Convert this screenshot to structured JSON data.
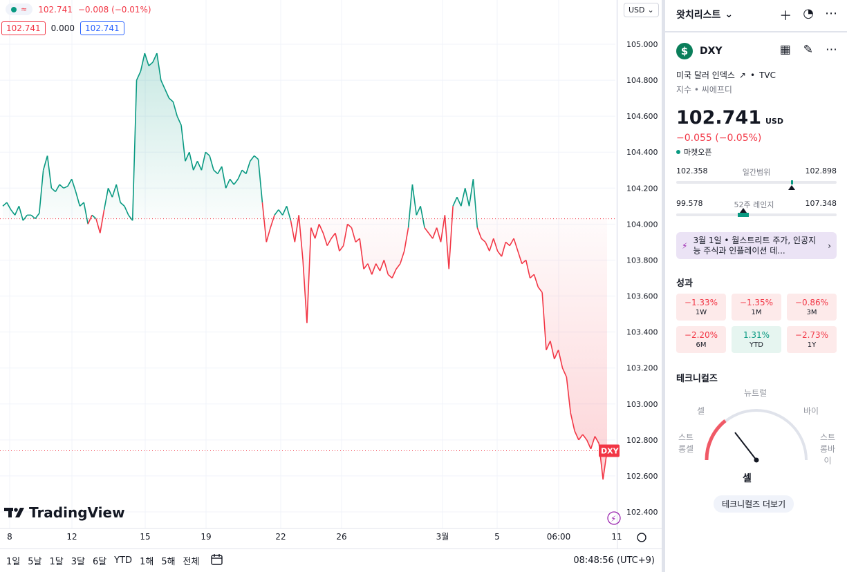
{
  "legend": {
    "last": "102.741",
    "change": "−0.008 (−0.01%)",
    "bid": "102.741",
    "spread": "0.000",
    "ask": "102.741"
  },
  "currency_select": "USD",
  "brand": "TradingView",
  "price_axis": [
    "105.000",
    "104.800",
    "104.600",
    "104.400",
    "104.200",
    "104.000",
    "103.800",
    "103.600",
    "103.400",
    "103.200",
    "103.000",
    "102.800",
    "102.600",
    "102.400"
  ],
  "time_axis": [
    "8",
    "12",
    "15",
    "19",
    "22",
    "26",
    "3월",
    "5",
    "06:00",
    "11"
  ],
  "last_price_label": "DXY",
  "date_ranges": [
    "1일",
    "5날",
    "1달",
    "3달",
    "6달",
    "YTD",
    "1해",
    "5해",
    "전체"
  ],
  "clock": "08:48:56 (UTC+9)",
  "colors": {
    "up": "#089981",
    "down": "#f23645",
    "accent": "#2962ff"
  },
  "chart_data": {
    "type": "line",
    "title": "DXY",
    "baseline": 104.03,
    "ylim": [
      102.35,
      105.1
    ],
    "y_ticks": [
      105.0,
      104.8,
      104.6,
      104.4,
      104.2,
      104.0,
      103.8,
      103.6,
      103.4,
      103.2,
      103.0,
      102.8,
      102.6,
      102.4
    ],
    "x_ticks": [
      "8",
      "12",
      "15",
      "19",
      "22",
      "26",
      "3월",
      "5",
      "06:00",
      "11"
    ],
    "series": [
      {
        "values": [
          104.1,
          104.12,
          104.08,
          104.05,
          104.1,
          104.02,
          104.05,
          104.05,
          104.03,
          104.06,
          104.3,
          104.38,
          104.2,
          104.18,
          104.22,
          104.2,
          104.21,
          104.25,
          104.18,
          104.1,
          104.12,
          104.0,
          104.05,
          104.03,
          103.95,
          104.08,
          104.2,
          104.15,
          104.22,
          104.12,
          104.1,
          104.05,
          104.02,
          104.8,
          104.85,
          104.95,
          104.88,
          104.9,
          104.95,
          104.8,
          104.75,
          104.7,
          104.68,
          104.6,
          104.55,
          104.35,
          104.4,
          104.3,
          104.35,
          104.3,
          104.4,
          104.38,
          104.3,
          104.28,
          104.32,
          104.2,
          104.25,
          104.22,
          104.25,
          104.3,
          104.28,
          104.35,
          104.38,
          104.36,
          104.12,
          103.9,
          103.98,
          104.05,
          104.08,
          104.05,
          104.1,
          104.02,
          103.9,
          104.05,
          103.8,
          103.45,
          103.98,
          103.92,
          104.0,
          103.95,
          103.88,
          103.92,
          103.95,
          103.85,
          103.88,
          104.0,
          103.98,
          103.9,
          103.92,
          103.75,
          103.78,
          103.72,
          103.78,
          103.74,
          103.8,
          103.72,
          103.7,
          103.75,
          103.78,
          103.85,
          103.98,
          104.22,
          104.05,
          104.1,
          103.98,
          103.95,
          103.92,
          103.98,
          103.9,
          104.05,
          103.75,
          104.1,
          104.15,
          104.1,
          104.2,
          104.1,
          104.25,
          103.98,
          103.92,
          103.9,
          103.85,
          103.92,
          103.85,
          103.82,
          103.9,
          103.88,
          103.92,
          103.85,
          103.78,
          103.8,
          103.7,
          103.72,
          103.65,
          103.62,
          103.3,
          103.35,
          103.25,
          103.3,
          103.2,
          103.15,
          102.95,
          102.85,
          102.8,
          102.83,
          102.8,
          102.75,
          102.82,
          102.78,
          102.58,
          102.74
        ]
      }
    ]
  },
  "panel": {
    "watchlist_title": "왓치리스트",
    "symbol": "DXY",
    "symbol_badge": "$",
    "description": "미국 달러 인덱스",
    "exchange": "TVC",
    "subtitle": "지수 • 씨에프디",
    "price": "102.741",
    "price_currency": "USD",
    "change": "−0.055 (−0.05%)",
    "market_status": "마켓오픈",
    "day_range": {
      "low": "102.358",
      "label": "일간범위",
      "high": "102.898",
      "marker": 0.72
    },
    "week52_range": {
      "low": "99.578",
      "label": "52주 레인지",
      "high": "107.348",
      "marker": 0.42
    },
    "news": "3월 1일 • 월스트리트 주가, 인공지능 주식과 인플레이션 데...",
    "performance_title": "성과",
    "performance": [
      {
        "value": "−1.33%",
        "period": "1W",
        "dir": "neg"
      },
      {
        "value": "−1.35%",
        "period": "1M",
        "dir": "neg"
      },
      {
        "value": "−0.86%",
        "period": "3M",
        "dir": "neg"
      },
      {
        "value": "−2.20%",
        "period": "6M",
        "dir": "neg"
      },
      {
        "value": "1.31%",
        "period": "YTD",
        "dir": "pos"
      },
      {
        "value": "−2.73%",
        "period": "1Y",
        "dir": "neg"
      }
    ],
    "technicals_title": "테크니컬즈",
    "gauge": {
      "neutral": "뉴트럴",
      "sell": "셀",
      "buy": "바이",
      "strong_sell": "스트롱셀",
      "strong_buy": "스트롱바이",
      "result": "셀",
      "more": "테크니컬즈 더보기"
    }
  }
}
